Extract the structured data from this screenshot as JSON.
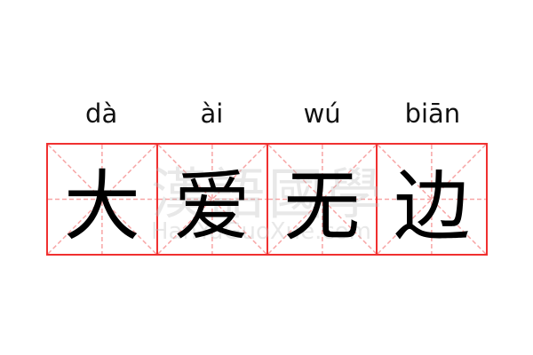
{
  "pinyin": [
    "dà",
    "ài",
    "wú",
    "biān"
  ],
  "characters": [
    "大",
    "爱",
    "无",
    "边"
  ],
  "watermark": {
    "text": "漢語國學",
    "url": "HanYuGuoXue.com"
  },
  "colors": {
    "border": "#f03030",
    "guide": "#f7a5a5",
    "text": "#000000"
  }
}
